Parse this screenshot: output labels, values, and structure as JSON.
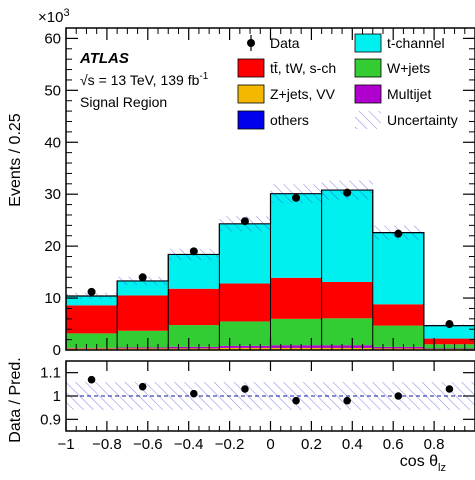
{
  "chart_data": [
    {
      "type": "stacked-histogram",
      "experiment": "ATLAS",
      "energy_label": "√s = 13 TeV, 139 fb",
      "energy_sup": "-1",
      "region_label": "Signal Region",
      "ylabel": "Events / 0.25",
      "y_multiplier": "×10",
      "y_multiplier_exp": "3",
      "xlabel": "cos θ",
      "xlabel_sub": "lz",
      "xlim": [
        -1,
        1
      ],
      "ylim": [
        0,
        62
      ],
      "x_ticks": [
        -1,
        -0.8,
        -0.6,
        -0.4,
        -0.2,
        0,
        0.2,
        0.4,
        0.6,
        0.8
      ],
      "x_tick_labels": [
        "−1",
        "−0.8",
        "−0.6",
        "−0.4",
        "−0.2",
        "0",
        "0.2",
        "0.4",
        "0.6",
        "0.8"
      ],
      "y_ticks": [
        0,
        10,
        20,
        30,
        40,
        50,
        60
      ],
      "y_tick_labels": [
        "0",
        "10",
        "20",
        "30",
        "40",
        "50",
        "60"
      ],
      "bin_edges": [
        -1,
        -0.75,
        -0.5,
        -0.25,
        0,
        0.25,
        0.5,
        0.75,
        1
      ],
      "stack_order": [
        "others",
        "Z+jets, VV",
        "Multijet",
        "W+jets",
        "tt̄, tW, s-ch",
        "t-channel"
      ],
      "series": [
        {
          "name": "others",
          "color": "#0000ee",
          "values": [
            0.1,
            0.1,
            0.1,
            0.1,
            0.1,
            0.1,
            0.1,
            0.1
          ]
        },
        {
          "name": "Z+jets, VV",
          "color": "#f5b800",
          "values": [
            0.2,
            0.2,
            0.2,
            0.3,
            0.3,
            0.3,
            0.2,
            0.1
          ]
        },
        {
          "name": "Multijet",
          "color": "#b000d0",
          "values": [
            0.1,
            0.2,
            0.3,
            0.4,
            0.5,
            0.5,
            0.3,
            0.1
          ]
        },
        {
          "name": "W+jets",
          "color": "#33cc33",
          "values": [
            2.8,
            3.2,
            4.2,
            4.7,
            5.1,
            5.2,
            4.1,
            0.8
          ]
        },
        {
          "name": "tt̄, tW, s-ch",
          "color": "#ff0000",
          "values": [
            5.4,
            6.8,
            7.0,
            7.3,
            7.9,
            7.0,
            4.1,
            1.1
          ]
        },
        {
          "name": "t-channel",
          "color": "#00f0f0",
          "values": [
            1.8,
            2.8,
            6.6,
            11.5,
            16.2,
            17.7,
            13.8,
            2.5
          ]
        }
      ],
      "uncertainty": {
        "name": "Uncertainty",
        "rel": [
          0.06,
          0.06,
          0.06,
          0.06,
          0.06,
          0.06,
          0.06,
          0.06
        ]
      },
      "data": {
        "name": "Data",
        "x": [
          -0.875,
          -0.625,
          -0.375,
          -0.125,
          0.125,
          0.375,
          0.625,
          0.875
        ],
        "values": [
          11.2,
          14.0,
          19.0,
          24.8,
          29.3,
          30.3,
          22.4,
          5.0
        ]
      },
      "legend": [
        {
          "label": "Data",
          "marker": "point"
        },
        {
          "label": "t-channel",
          "color": "#00f0f0"
        },
        {
          "label": "tt̄, tW, s-ch",
          "color": "#ff0000"
        },
        {
          "label": "W+jets",
          "color": "#33cc33"
        },
        {
          "label": "Z+jets, VV",
          "color": "#f5b800"
        },
        {
          "label": "Multijet",
          "color": "#b000d0"
        },
        {
          "label": "others",
          "color": "#0000ee"
        },
        {
          "label": "Uncertainty",
          "marker": "hatch"
        }
      ]
    },
    {
      "type": "ratio",
      "ylabel": "Data / Pred.",
      "ylim": [
        0.85,
        1.15
      ],
      "y_ticks": [
        0.9,
        1.0,
        1.1
      ],
      "y_tick_labels": [
        "0.9",
        "1",
        "1.1"
      ],
      "x": [
        -0.875,
        -0.625,
        -0.375,
        -0.125,
        0.125,
        0.375,
        0.625,
        0.875
      ],
      "values": [
        1.07,
        1.04,
        1.01,
        1.03,
        0.98,
        0.98,
        1.0,
        1.03
      ],
      "uncertainty_rel": [
        0.06,
        0.06,
        0.06,
        0.06,
        0.06,
        0.06,
        0.06,
        0.06
      ]
    }
  ]
}
